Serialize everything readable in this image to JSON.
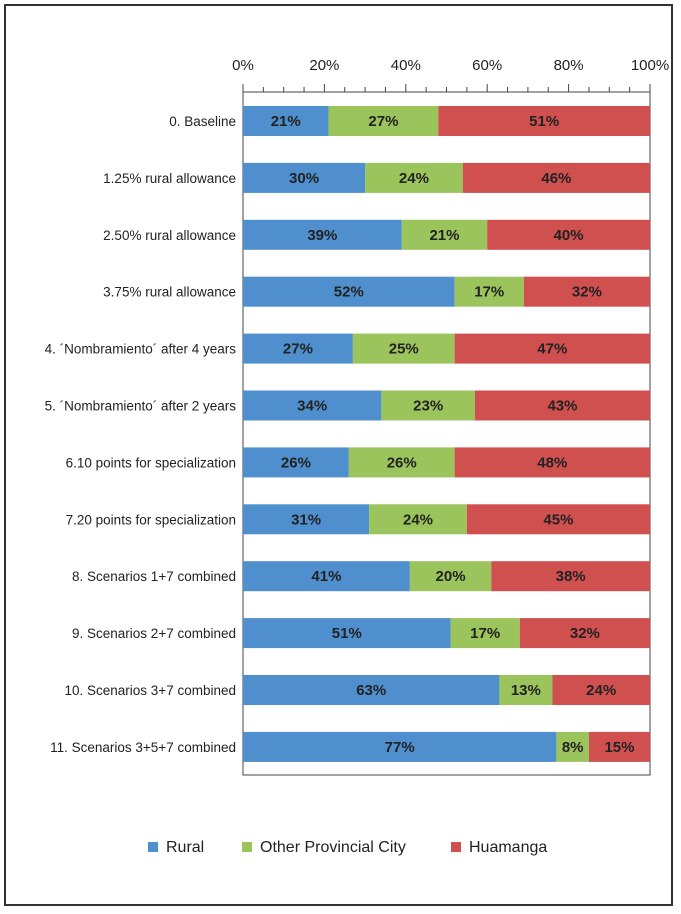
{
  "chart_data": {
    "type": "bar",
    "orientation": "horizontal",
    "stacked": "percent",
    "title": "",
    "xlabel": "",
    "ylabel": "",
    "xlim": [
      0,
      100
    ],
    "x_ticks": [
      "0%",
      "20%",
      "40%",
      "60%",
      "80%",
      "100%"
    ],
    "grid": false,
    "legend_position": "bottom",
    "categories": [
      "0. Baseline",
      "1.25% rural allowance",
      "2.50% rural allowance",
      "3.75% rural allowance",
      "4. ´Nombramiento´ after 4 years",
      "5. ´Nombramiento´ after 2 years",
      "6.10 points for specialization",
      "7.20 points for specialization",
      "8. Scenarios 1+7 combined",
      "9. Scenarios 2+7 combined",
      "10. Scenarios 3+7 combined",
      "11. Scenarios 3+5+7 combined"
    ],
    "series": [
      {
        "name": "Rural",
        "color": "#4f8fcd",
        "values": [
          21,
          30,
          39,
          52,
          27,
          34,
          26,
          31,
          41,
          51,
          63,
          77
        ],
        "labels": [
          "21%",
          "30%",
          "39%",
          "52%",
          "27%",
          "34%",
          "26%",
          "31%",
          "41%",
          "51%",
          "63%",
          "77%"
        ]
      },
      {
        "name": "Other Provincial City",
        "color": "#9bc45c",
        "values": [
          27,
          24,
          21,
          17,
          25,
          23,
          26,
          24,
          20,
          17,
          13,
          8
        ],
        "labels": [
          "27%",
          "24%",
          "21%",
          "17%",
          "25%",
          "23%",
          "26%",
          "24%",
          "20%",
          "17%",
          "13%",
          "8%"
        ]
      },
      {
        "name": "Huamanga",
        "color": "#d0504f",
        "values": [
          51,
          46,
          40,
          32,
          47,
          43,
          48,
          45,
          38,
          32,
          24,
          15
        ],
        "labels": [
          "51%",
          "46%",
          "40%",
          "32%",
          "47%",
          "43%",
          "48%",
          "45%",
          "38%",
          "32%",
          "24%",
          "15%"
        ]
      }
    ]
  }
}
